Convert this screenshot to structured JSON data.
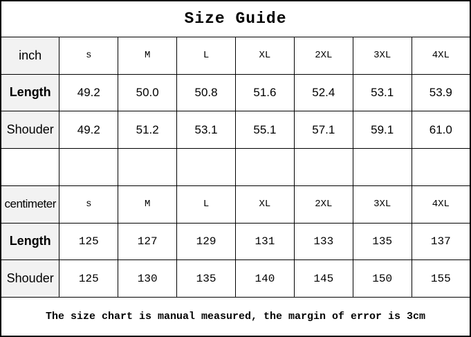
{
  "title": "Size Guide",
  "footer_note": "The size chart is manual measured, the margin of error is 3cm",
  "sizes": [
    "s",
    "M",
    "L",
    "XL",
    "2XL",
    "3XL",
    "4XL"
  ],
  "inch": {
    "unit_label": "inch",
    "rows": [
      {
        "label": "Length",
        "values": [
          "49.2",
          "50.0",
          "50.8",
          "51.6",
          "52.4",
          "53.1",
          "53.9"
        ]
      },
      {
        "label": "Shouder",
        "values": [
          "49.2",
          "51.2",
          "53.1",
          "55.1",
          "57.1",
          "59.1",
          "61.0"
        ]
      }
    ]
  },
  "centimeter": {
    "unit_label": "centimeter",
    "rows": [
      {
        "label": "Length",
        "values": [
          "125",
          "127",
          "129",
          "131",
          "133",
          "135",
          "137"
        ]
      },
      {
        "label": "Shouder",
        "values": [
          "125",
          "130",
          "135",
          "140",
          "145",
          "150",
          "155"
        ]
      }
    ]
  },
  "colors": {
    "label_column_background": "#f2f2f2",
    "grid_border": "#000000",
    "text": "#000000",
    "background": "#ffffff"
  }
}
